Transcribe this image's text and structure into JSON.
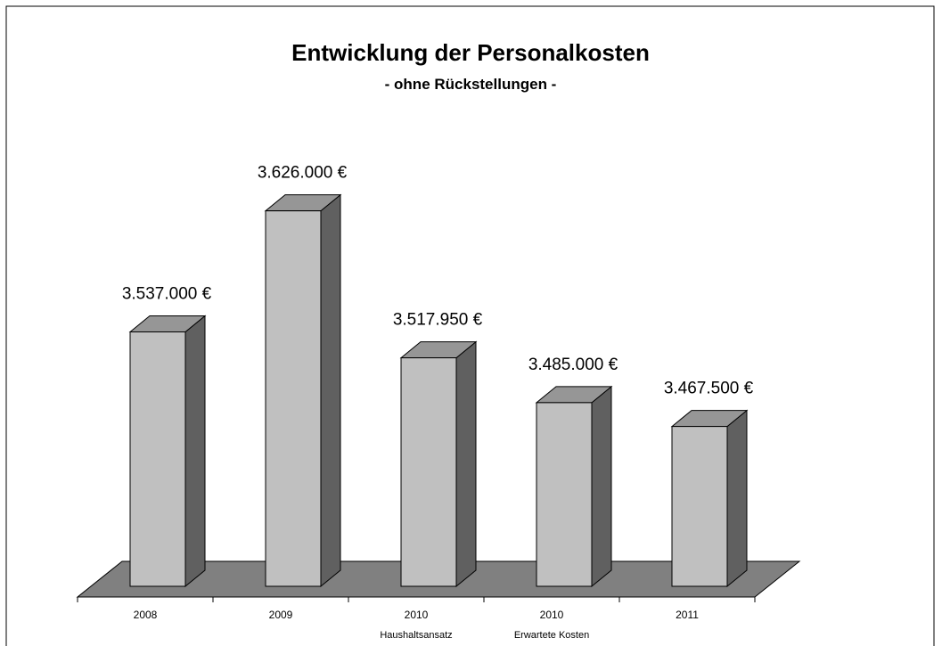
{
  "chart_data": {
    "type": "bar3d",
    "title": "Entwicklung der Personalkosten",
    "subtitle": "- ohne Rückstellungen -",
    "categories": [
      "2008",
      "2009",
      "2010",
      "2010",
      "2011"
    ],
    "category_sublabels": [
      null,
      null,
      "Haushaltsansatz",
      "Erwartete Kosten",
      null
    ],
    "values": [
      3537000,
      3626000,
      3517950,
      3485000,
      3467500
    ],
    "value_labels": [
      "3.537.000 €",
      "3.626.000 €",
      "3.517.950 €",
      "3.485.000 €",
      "3.467.500 €"
    ],
    "color": "#c0c0c0",
    "side_color": "#606060",
    "top_color": "#969696",
    "floor_color": "#808080",
    "ylim": [
      3350000,
      3650000
    ]
  }
}
